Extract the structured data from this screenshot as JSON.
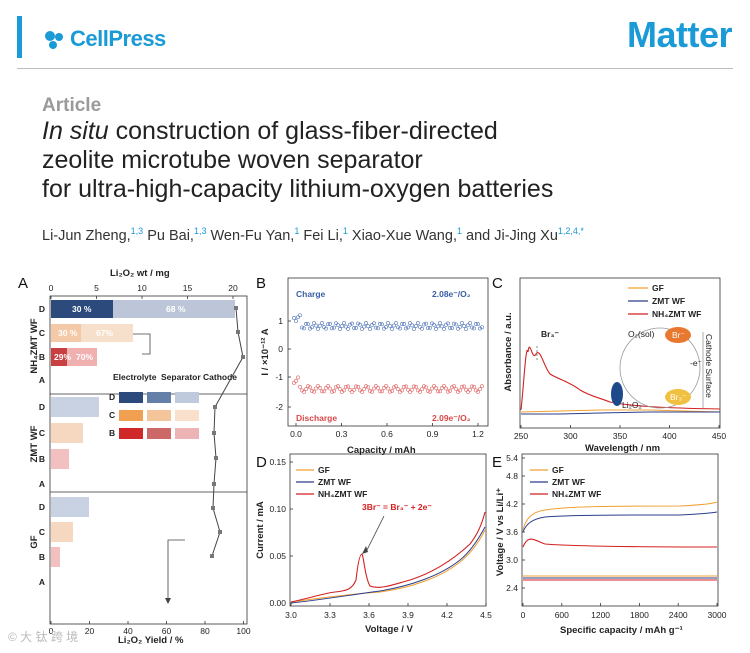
{
  "header": {
    "publisher": "CellPress",
    "journal": "Matter"
  },
  "article_type": "Article",
  "title": {
    "italic": "In situ",
    "line1_rest": " construction of glass-fiber-directed",
    "line2": "zeolite microtube woven separator",
    "line3": "for ultra-high-capacity lithium-oxygen batteries"
  },
  "authors": [
    {
      "name": "Li-Jun Zheng,",
      "sup": "1,3"
    },
    {
      "name": " Pu Bai,",
      "sup": "1,3"
    },
    {
      "name": " Wen-Fu Yan,",
      "sup": "1"
    },
    {
      "name": " Fei Li,",
      "sup": "1"
    },
    {
      "name": " Xiao-Xue Wang,",
      "sup": "1"
    },
    {
      "name": " and Ji-Jing Xu",
      "sup": "1,2,4,*"
    }
  ],
  "watermark": "© 大 钛 跨 境",
  "colors": {
    "brand": "#1a9ad6",
    "gf": "#f0a030",
    "zmt": "#2c3e8c",
    "nh4": "#d42020",
    "charge": "#3a5fa6",
    "discharge": "#d94848"
  },
  "panels": {
    "A": {
      "label": "A",
      "top_axis_title": "Li₂O₂ wt / mg",
      "bottom_axis_title": "Li₂O₂ Yield / %",
      "top_ticks": [
        "0",
        "5",
        "10",
        "15",
        "20"
      ],
      "bottom_ticks": [
        "0",
        "20",
        "40",
        "60",
        "80",
        "100"
      ],
      "row_labels": [
        "D",
        "C",
        "B",
        "A",
        "D",
        "C",
        "B",
        "A",
        "D",
        "C",
        "B",
        "A"
      ],
      "groups": [
        "NH₄ZMT WF",
        "ZMT WF",
        "GF"
      ],
      "bar_texts": [
        "30 %",
        "68 %",
        "30 %",
        "67%",
        "29%",
        "70%"
      ],
      "legend": {
        "headers": [
          "Electrolyte",
          "Separator",
          "Cathode"
        ],
        "rows": [
          "D",
          "C",
          "B"
        ]
      }
    },
    "B": {
      "label": "B",
      "charge": "Charge",
      "discharge": "Discharge",
      "charge_val": "2.08e⁻/O₂",
      "discharge_val": "2.09e⁻/O₂",
      "ylabel": "I / ×10⁻¹² A",
      "xlabel": "Capacity / mAh",
      "xticks": [
        "0.0",
        "0.3",
        "0.6",
        "0.9",
        "1.2"
      ],
      "yticks": [
        "1",
        "0",
        "-1",
        "-2"
      ]
    },
    "C": {
      "label": "C",
      "ylabel": "Absorbance / a.u.",
      "xlabel": "Wavelength / nm",
      "xticks": [
        "250",
        "300",
        "350",
        "400",
        "450"
      ],
      "legend": [
        "GF",
        "ZMT WF",
        "NH₄ZMT WF"
      ],
      "br3": "Br₃⁻",
      "o2": "O₂(sol)",
      "br": "Br⁻",
      "br3b": "Br₃⁻",
      "li2o2": "Li₂O₂",
      "e": "-e⁻",
      "cathode": "Cathode Surface"
    },
    "D": {
      "label": "D",
      "ylabel": "Current / mA",
      "xlabel": "Voltage / V",
      "xticks": [
        "3.0",
        "3.3",
        "3.6",
        "3.9",
        "4.2",
        "4.5"
      ],
      "yticks": [
        "0.00",
        "0.05",
        "0.10",
        "0.15"
      ],
      "legend": [
        "GF",
        "ZMT WF",
        "NH₄ZMT WF"
      ],
      "annotation": "3Br⁻ = Br₃⁻ + 2e⁻"
    },
    "E": {
      "label": "E",
      "ylabel": "Voltage / V vs Li/Li⁺",
      "xlabel": "Specific capacity / mAh g⁻¹",
      "xticks": [
        "0",
        "600",
        "1200",
        "1800",
        "2400",
        "3000"
      ],
      "yticks": [
        "2.4",
        "3.0",
        "3.6",
        "4.2",
        "4.8",
        "5.4"
      ],
      "legend": [
        "GF",
        "ZMT WF",
        "NH₄ZMT WF"
      ]
    }
  }
}
